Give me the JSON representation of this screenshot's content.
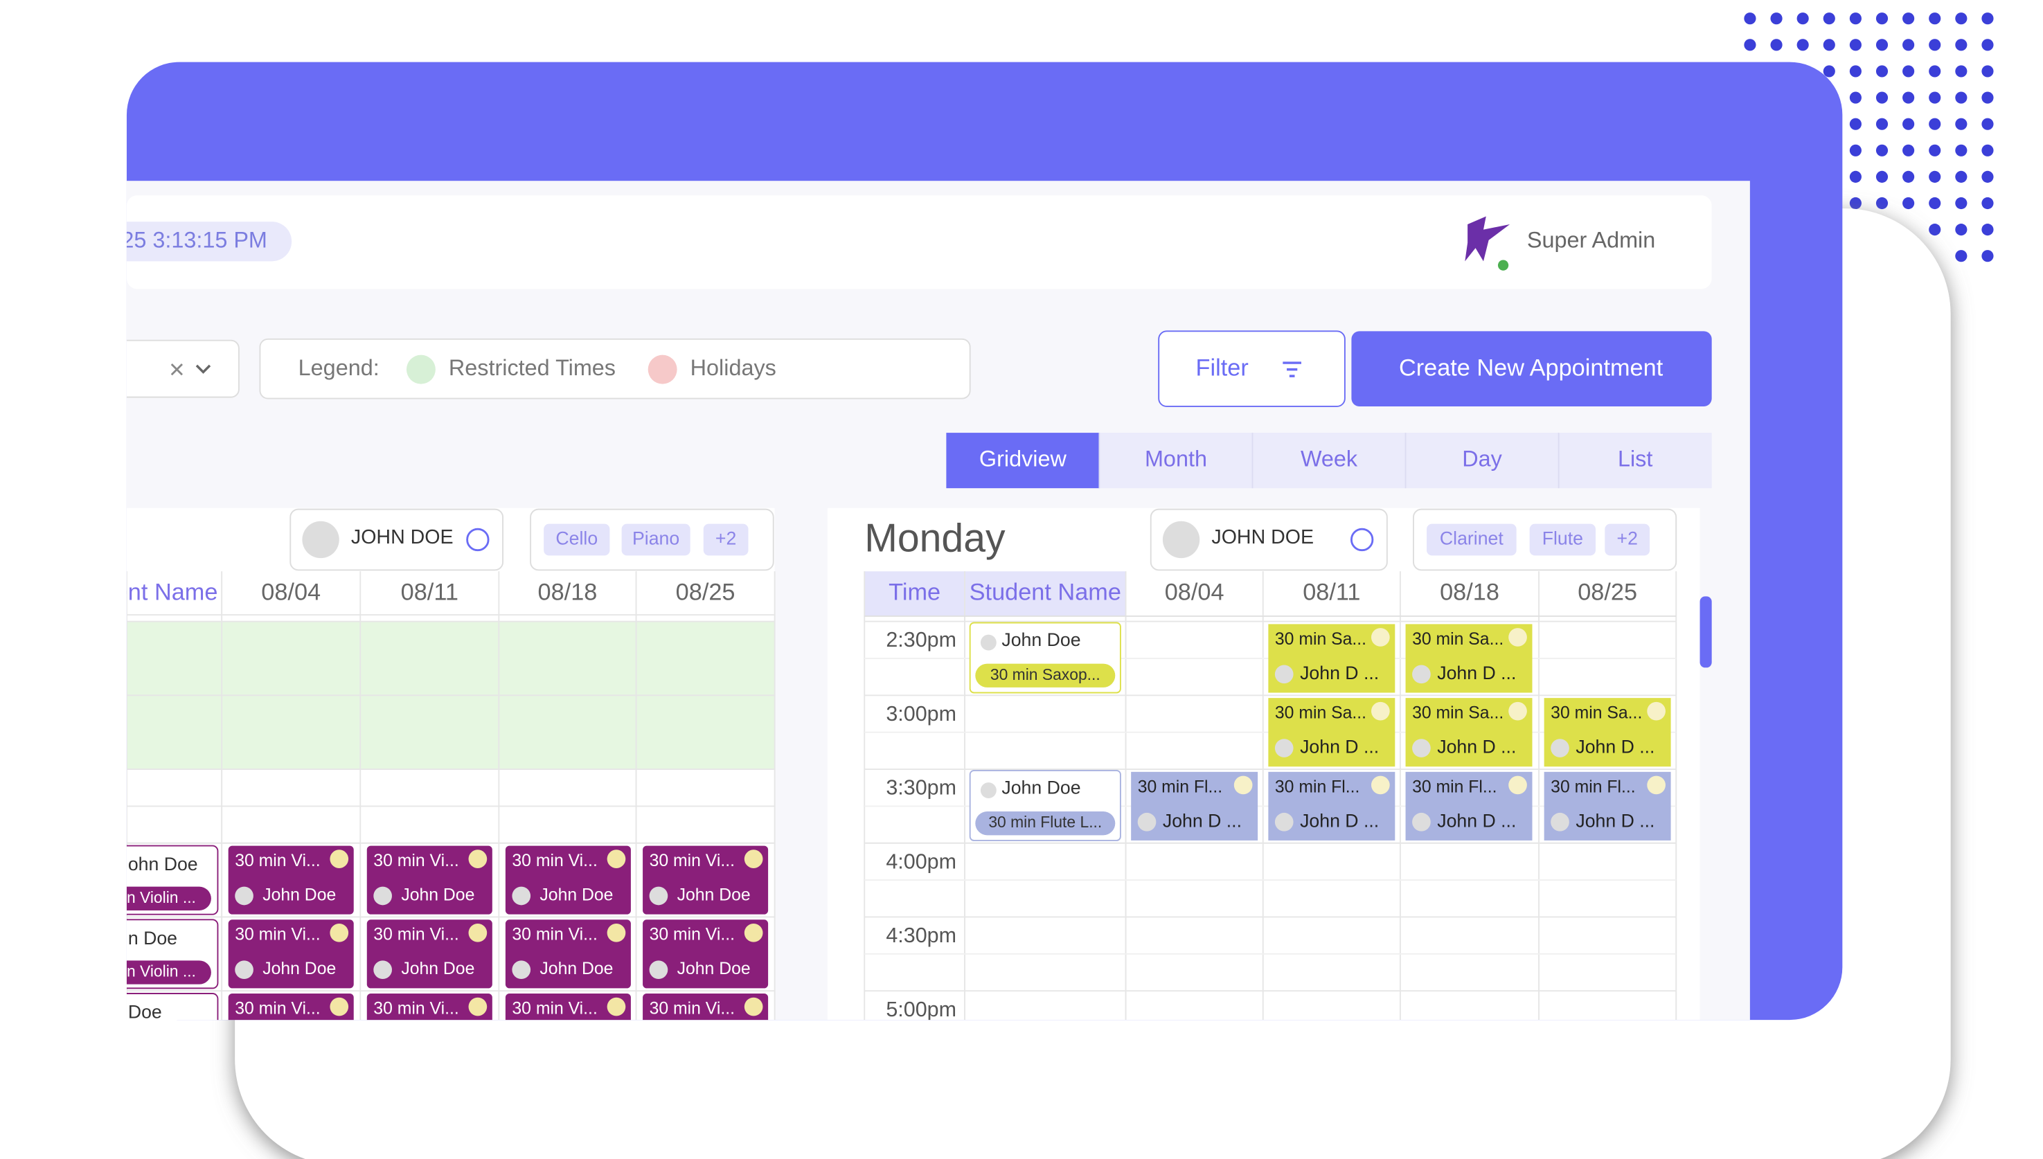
{
  "header": {
    "datetime": "25 3:13:15 PM",
    "user": "Super Admin"
  },
  "toolbar": {
    "legend_label": "Legend:",
    "legend_items": [
      "Restricted Times",
      "Holidays"
    ],
    "filter": "Filter",
    "create": "Create New Appointment"
  },
  "views": {
    "items": [
      "Gridview",
      "Month",
      "Week",
      "Day",
      "List"
    ],
    "active": 0
  },
  "left_panel": {
    "teacher": "JOHN DOE",
    "instruments": [
      "Cello",
      "Piano",
      "+2"
    ],
    "columns": [
      "ent Name",
      "08/04",
      "08/11",
      "08/18",
      "08/25"
    ],
    "students": [
      {
        "name": "ohn Doe",
        "lesson": "n Violin ..."
      },
      {
        "name": "n Doe",
        "lesson": "n Violin ..."
      },
      {
        "name": "Doe"
      }
    ],
    "appointments": [
      [
        {
          "title": "30 min Vi...",
          "student": "John Doe"
        },
        {
          "title": "30 min Vi...",
          "student": "John Doe"
        },
        {
          "title": "30 min Vi...",
          "student": "John Doe"
        },
        {
          "title": "30 min Vi...",
          "student": "John Doe"
        }
      ],
      [
        {
          "title": "30 min Vi...",
          "student": "John Doe"
        },
        {
          "title": "30 min Vi...",
          "student": "John Doe"
        },
        {
          "title": "30 min Vi...",
          "student": "John Doe"
        },
        {
          "title": "30 min Vi...",
          "student": "John Doe"
        }
      ],
      [
        {
          "title": "30 min Vi..."
        },
        {
          "title": "30 min Vi..."
        },
        {
          "title": "30 min Vi..."
        },
        {
          "title": "30 min Vi..."
        }
      ]
    ]
  },
  "right_panel": {
    "day": "Monday",
    "teacher": "JOHN DOE",
    "instruments": [
      "Clarinet",
      "Flute",
      "+2"
    ],
    "columns": [
      "Time",
      "Student Name",
      "08/04",
      "08/11",
      "08/18",
      "08/25"
    ],
    "rows": [
      {
        "time": "2:30pm",
        "student": {
          "name": "John Doe",
          "lesson": "30 min Saxop...",
          "color": "#dde04a"
        },
        "appointments": [
          null,
          {
            "title": "30 min Sa...",
            "student": "John D ...",
            "color": "#dde04a"
          },
          {
            "title": "30 min Sa...",
            "student": "John D ...",
            "color": "#dde04a"
          },
          null
        ]
      },
      {
        "time": "3:00pm",
        "student": null,
        "appointments": [
          null,
          {
            "title": "30 min Sa...",
            "student": "John D ...",
            "color": "#dde04a"
          },
          {
            "title": "30 min Sa...",
            "student": "John D ...",
            "color": "#dde04a"
          },
          {
            "title": "30 min Sa...",
            "student": "John D ...",
            "color": "#dde04a"
          }
        ]
      },
      {
        "time": "3:30pm",
        "student": {
          "name": "John Doe",
          "lesson": "30 min Flute L...",
          "color": "#a9b3e0"
        },
        "appointments": [
          {
            "title": "30 min Fl...",
            "student": "John D ...",
            "color": "#a9b3e0"
          },
          {
            "title": "30 min Fl...",
            "student": "John D ...",
            "color": "#a9b3e0"
          },
          {
            "title": "30 min Fl...",
            "student": "John D ...",
            "color": "#a9b3e0"
          },
          {
            "title": "30 min Fl...",
            "student": "John D ...",
            "color": "#a9b3e0"
          }
        ]
      },
      {
        "time": "4:00pm",
        "student": null,
        "appointments": []
      },
      {
        "time": "4:30pm",
        "student": null,
        "appointments": []
      },
      {
        "time": "5:00pm",
        "student": null,
        "appointments": []
      }
    ]
  }
}
